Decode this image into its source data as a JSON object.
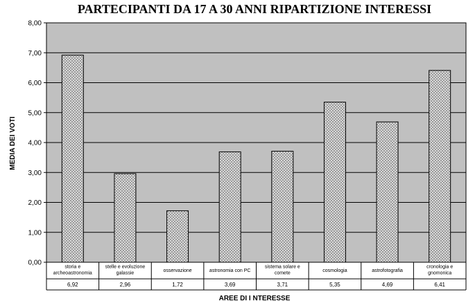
{
  "chart_data": {
    "type": "bar",
    "title": "PARTECIPANTI DA 17 A 30 ANNI   RIPARTIZIONE INTERESSI",
    "xlabel": "AREE DI I NTERESSE",
    "ylabel": "MEDIA DEI VOTI",
    "ylim": [
      0,
      8
    ],
    "yticks": [
      "0,00",
      "1,00",
      "2,00",
      "3,00",
      "4,00",
      "5,00",
      "6,00",
      "7,00",
      "8,00"
    ],
    "grid": true,
    "plot_background": "#c0c0c0",
    "bar_fill": "#d8d8d8",
    "categories": [
      [
        "storia e",
        "archeoastronomia"
      ],
      [
        "stelle e evoluzione",
        "galassie"
      ],
      [
        "osservazione"
      ],
      [
        "astronomia con PC"
      ],
      [
        "sistema solare e",
        "comete"
      ],
      [
        "cosmologia"
      ],
      [
        "astrofotografia"
      ],
      [
        "cronologia e",
        "gnomonica"
      ]
    ],
    "values": [
      6.92,
      2.96,
      1.72,
      3.69,
      3.71,
      5.35,
      4.69,
      6.41
    ],
    "value_labels": [
      "6,92",
      "2,96",
      "1,72",
      "3,69",
      "3,71",
      "5,35",
      "4,69",
      "6,41"
    ]
  }
}
